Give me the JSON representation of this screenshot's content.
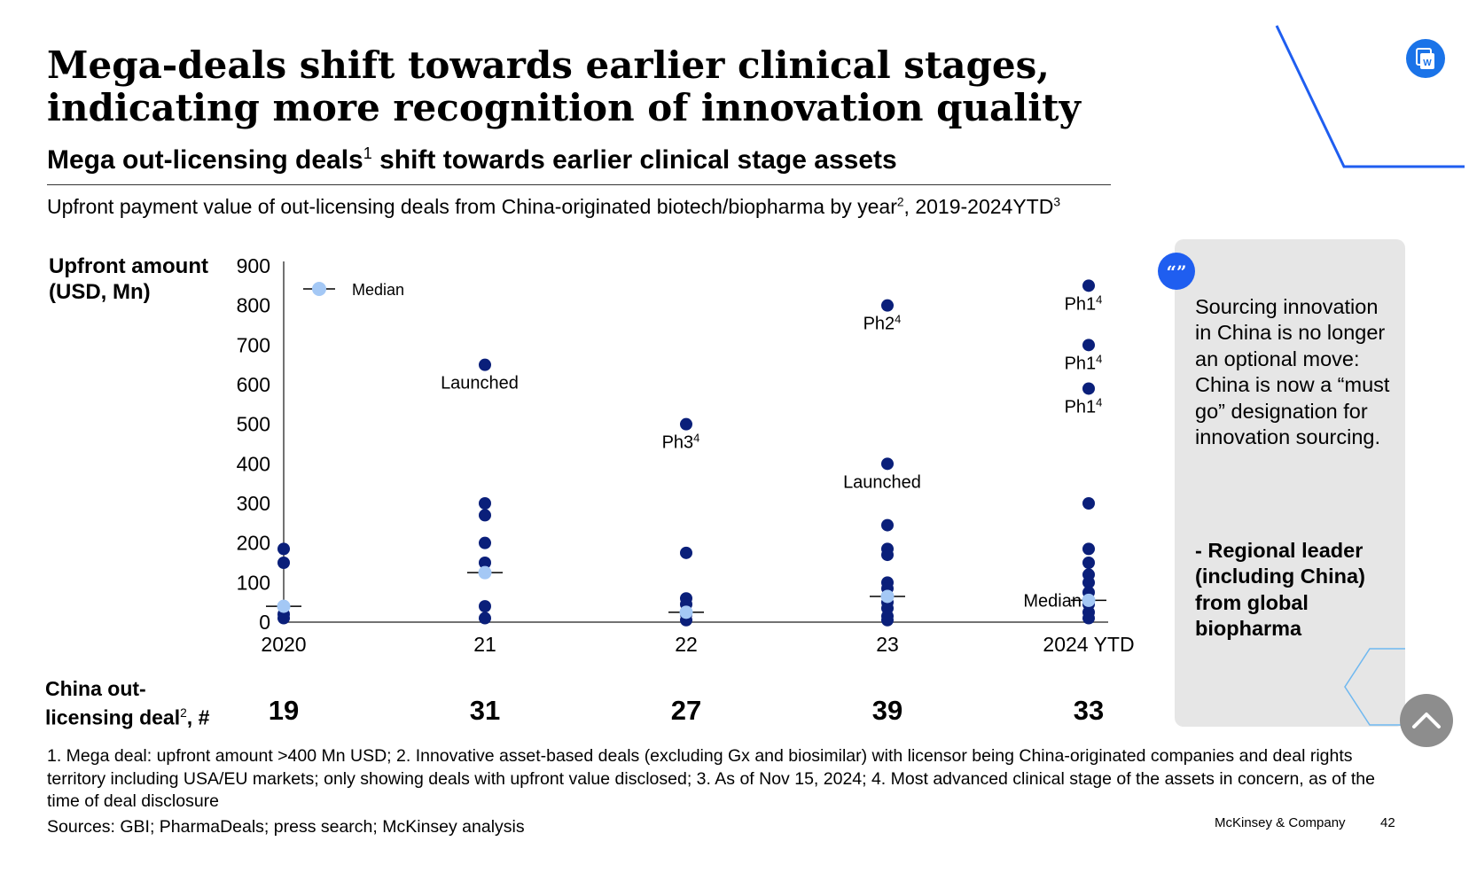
{
  "title": "Mega-deals shift towards earlier clinical stages, indicating more recognition of innovation quality",
  "subtitle": {
    "main": "Mega out-licensing deals",
    "sup": "1",
    "rest": " shift towards earlier clinical stage assets"
  },
  "caption": {
    "part1": "Upfront payment value of out-licensing deals from China-originated biotech/biopharma by year",
    "sup1": "2",
    "part2": ", 2019-2024YTD",
    "sup2": "3"
  },
  "y_axis_title": {
    "line1": "Upfront amount",
    "line2": "(USD, Mn)"
  },
  "deal_label": {
    "line1": "China out-",
    "line2": "licensing deal",
    "sup": "2",
    "suffix": ", #"
  },
  "footnote": "1. Mega deal: upfront amount >400 Mn USD; 2. Innovative asset-based deals (excluding Gx and biosimilar) with licensor being China-originated companies and deal rights territory including USA/EU markets; only showing deals with upfront value disclosed; 3. As of Nov 15, 2024; 4. Most advanced clinical stage of the assets in concern, as of the time of deal disclosure",
  "sources": "Sources: GBI; PharmaDeals; press search; McKinsey analysis",
  "brand": "McKinsey & Company",
  "page_number": "42",
  "quote": {
    "text": "Sourcing innovation in China is no longer an optional move: China is now a “must go” designation for innovation sourcing.",
    "attribution": "- Regional leader (including China) from global biopharma",
    "icon": "quote-icon"
  },
  "icons": {
    "word": "word-icon",
    "scroll": "scroll-up-icon"
  },
  "colors": {
    "deal_dot": "#0a1f7a",
    "median_dot": "#a4c8f5",
    "accent_blue": "#1f5ef0",
    "quote_bg": "#e6e6e6"
  },
  "chart_data": {
    "type": "scatter",
    "categories": [
      "2020",
      "21",
      "22",
      "23",
      "2024 YTD"
    ],
    "y_ticks": [
      "0",
      "100",
      "200",
      "300",
      "400",
      "500",
      "600",
      "700",
      "800",
      "900"
    ],
    "ylim": [
      0,
      900
    ],
    "legend": {
      "label": "Median",
      "placement": "top-left"
    },
    "series": [
      {
        "name": "Deals",
        "points": [
          {
            "x": "2020",
            "y": 185
          },
          {
            "x": "2020",
            "y": 150
          },
          {
            "x": "2020",
            "y": 20
          },
          {
            "x": "2020",
            "y": 10
          },
          {
            "x": "21",
            "y": 650
          },
          {
            "x": "21",
            "y": 300
          },
          {
            "x": "21",
            "y": 270
          },
          {
            "x": "21",
            "y": 200
          },
          {
            "x": "21",
            "y": 150
          },
          {
            "x": "21",
            "y": 40
          },
          {
            "x": "21",
            "y": 10
          },
          {
            "x": "22",
            "y": 500
          },
          {
            "x": "22",
            "y": 175
          },
          {
            "x": "22",
            "y": 60
          },
          {
            "x": "22",
            "y": 45
          },
          {
            "x": "22",
            "y": 20
          },
          {
            "x": "22",
            "y": 5
          },
          {
            "x": "23",
            "y": 800
          },
          {
            "x": "23",
            "y": 400
          },
          {
            "x": "23",
            "y": 245
          },
          {
            "x": "23",
            "y": 185
          },
          {
            "x": "23",
            "y": 170
          },
          {
            "x": "23",
            "y": 100
          },
          {
            "x": "23",
            "y": 85
          },
          {
            "x": "23",
            "y": 50
          },
          {
            "x": "23",
            "y": 35
          },
          {
            "x": "23",
            "y": 15
          },
          {
            "x": "23",
            "y": 5
          },
          {
            "x": "2024 YTD",
            "y": 850
          },
          {
            "x": "2024 YTD",
            "y": 700
          },
          {
            "x": "2024 YTD",
            "y": 590
          },
          {
            "x": "2024 YTD",
            "y": 300
          },
          {
            "x": "2024 YTD",
            "y": 185
          },
          {
            "x": "2024 YTD",
            "y": 150
          },
          {
            "x": "2024 YTD",
            "y": 120
          },
          {
            "x": "2024 YTD",
            "y": 100
          },
          {
            "x": "2024 YTD",
            "y": 75
          },
          {
            "x": "2024 YTD",
            "y": 45
          },
          {
            "x": "2024 YTD",
            "y": 25
          },
          {
            "x": "2024 YTD",
            "y": 10
          }
        ]
      },
      {
        "name": "Median",
        "points": [
          {
            "x": "2020",
            "y": 40
          },
          {
            "x": "21",
            "y": 125
          },
          {
            "x": "22",
            "y": 25
          },
          {
            "x": "23",
            "y": 65
          },
          {
            "x": "2024 YTD",
            "y": 55
          }
        ]
      }
    ],
    "annotations": [
      {
        "x": "21",
        "y": 650,
        "text": "Launched",
        "sup": ""
      },
      {
        "x": "22",
        "y": 500,
        "text": "Ph3",
        "sup": "4"
      },
      {
        "x": "23",
        "y": 800,
        "text": "Ph2",
        "sup": "4"
      },
      {
        "x": "23",
        "y": 400,
        "text": "Launched",
        "sup": ""
      },
      {
        "x": "2024 YTD",
        "y": 850,
        "text": "Ph1",
        "sup": "4"
      },
      {
        "x": "2024 YTD",
        "y": 700,
        "text": "Ph1",
        "sup": "4"
      },
      {
        "x": "2024 YTD",
        "y": 590,
        "text": "Ph1",
        "sup": "4"
      },
      {
        "x": "2024 YTD",
        "y": 55,
        "text": "Median",
        "sup": ""
      }
    ],
    "deal_counts": [
      "19",
      "31",
      "27",
      "39",
      "33"
    ]
  }
}
